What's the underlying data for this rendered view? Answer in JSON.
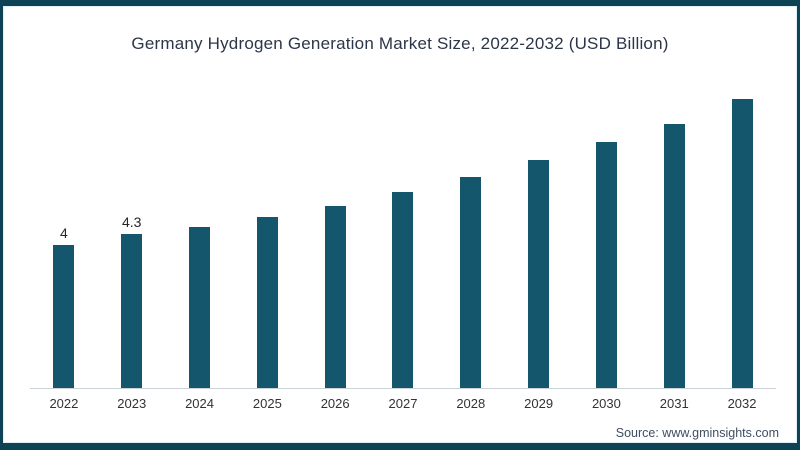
{
  "chart": {
    "title": "Germany Hydrogen Generation Market Size, 2022-2032 (USD Billion)",
    "source": "Source: www.gminsights.com"
  },
  "chart_data": {
    "type": "bar",
    "title": "Germany Hydrogen Generation Market Size, 2022-2032 (USD Billion)",
    "categories": [
      "2022",
      "2023",
      "2024",
      "2025",
      "2026",
      "2027",
      "2028",
      "2029",
      "2030",
      "2031",
      "2032"
    ],
    "values": [
      4,
      4.3,
      4.5,
      4.8,
      5.1,
      5.5,
      5.9,
      6.4,
      6.9,
      7.4,
      8.1
    ],
    "data_labels": [
      "4",
      "4.3",
      "",
      "",
      "",
      "",
      "",
      "",
      "",
      "",
      ""
    ],
    "xlabel": "",
    "ylabel": "",
    "ylim": [
      0,
      8.5
    ],
    "grid": false,
    "legend_position": "none",
    "source": "Source: www.gminsights.com"
  },
  "colors": {
    "bar": "#14576d",
    "frame_border": "#0d4355",
    "title_text": "#2b3649",
    "axis_line": "#cbd2d8",
    "tick_text": "#333333",
    "data_label_text": "#262626",
    "source_text": "#3f4e63",
    "background": "#ffffff"
  }
}
